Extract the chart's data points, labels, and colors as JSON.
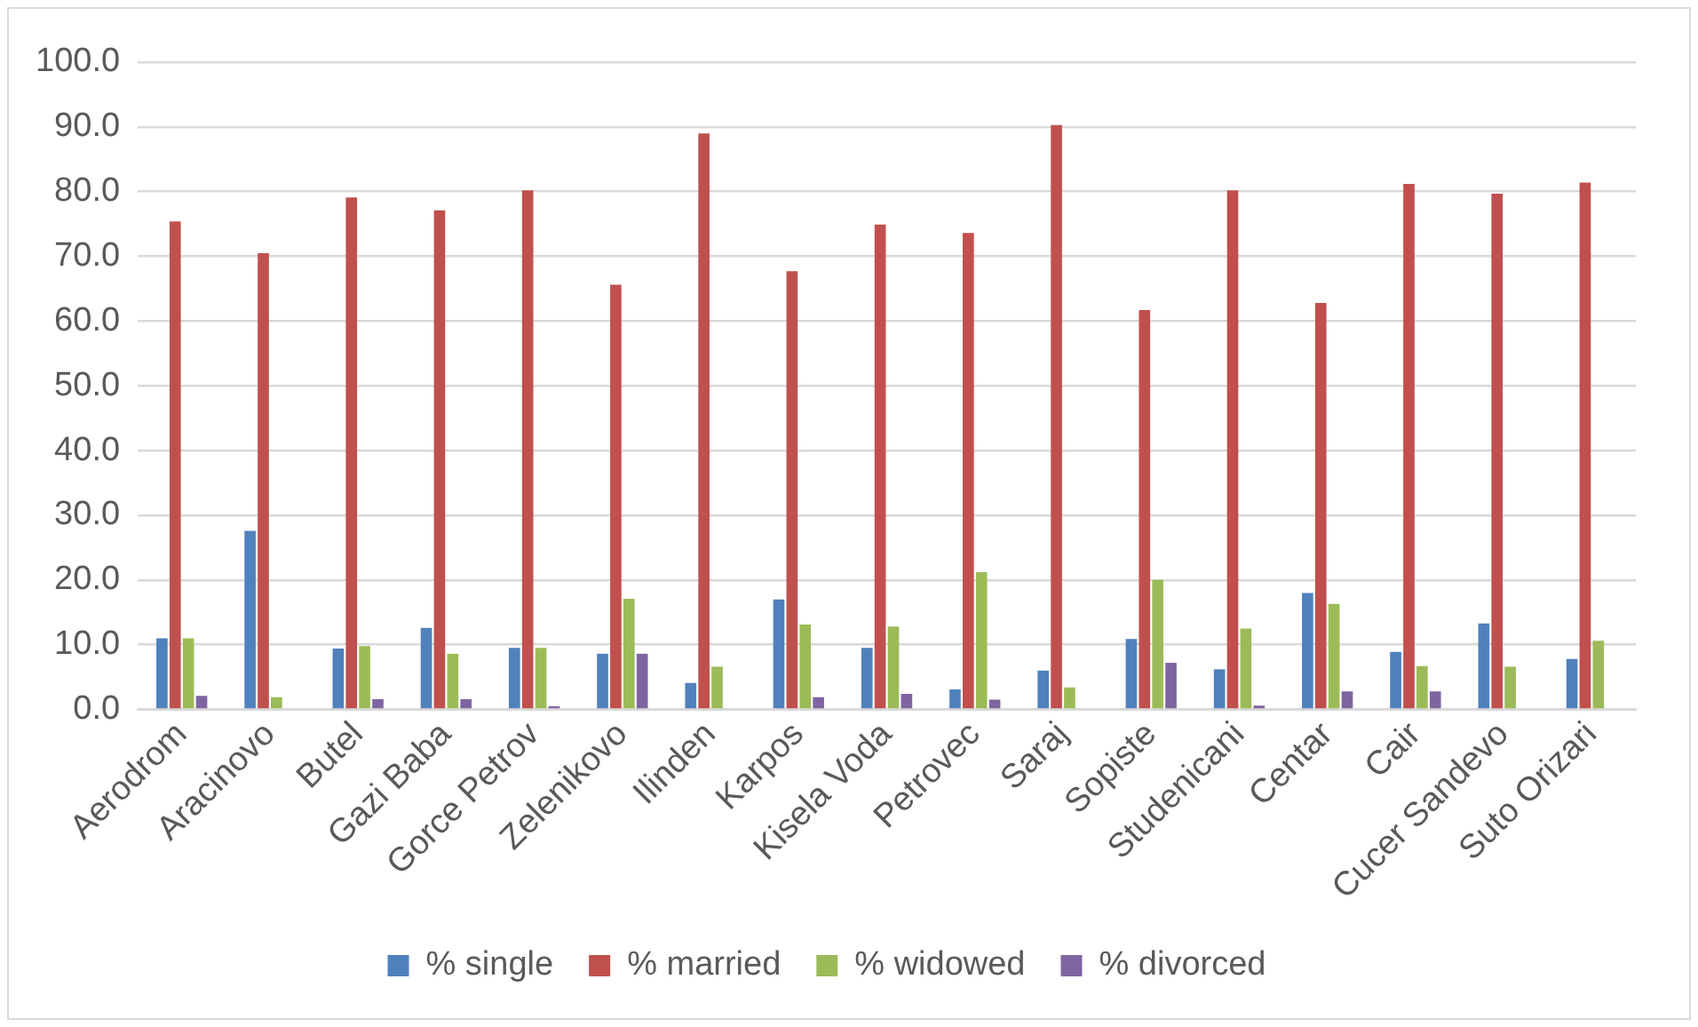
{
  "chart_data": {
    "type": "bar",
    "categories": [
      "Aerodrom",
      "Aracinovo",
      "Butel",
      "Gazi Baba",
      "Gorce Petrov",
      "Zelenikovo",
      "Ilinden",
      "Karpos",
      "Kisela Voda",
      "Petrovec",
      "Saraj",
      "Sopiste",
      "Studenicani",
      "Centar",
      "Cair",
      "Cucer Sandevo",
      "Suto Orizari"
    ],
    "series": [
      {
        "name": "% single",
        "color": "#4f81bd",
        "values": [
          11.0,
          27.6,
          9.4,
          12.6,
          9.5,
          8.6,
          4.1,
          17.0,
          9.5,
          3.1,
          6.0,
          10.9,
          6.2,
          18.0,
          8.9,
          13.3,
          7.8
        ]
      },
      {
        "name": "% married",
        "color": "#c0504d",
        "values": [
          75.4,
          70.5,
          79.1,
          77.1,
          80.2,
          65.6,
          89.0,
          67.7,
          74.9,
          73.6,
          90.3,
          61.7,
          80.2,
          62.8,
          81.2,
          79.7,
          81.4
        ]
      },
      {
        "name": "% widowed",
        "color": "#9bbb59",
        "values": [
          11.0,
          1.9,
          9.8,
          8.6,
          9.5,
          17.1,
          6.6,
          13.1,
          12.8,
          21.2,
          3.4,
          20.0,
          12.5,
          16.3,
          6.7,
          6.6,
          10.6
        ]
      },
      {
        "name": "% divorced",
        "color": "#8064a2",
        "values": [
          2.1,
          0,
          1.6,
          1.6,
          0.5,
          8.6,
          0,
          1.9,
          2.4,
          1.5,
          0,
          7.2,
          0.6,
          2.8,
          2.8,
          0,
          0
        ]
      }
    ],
    "ylim": [
      0,
      100
    ],
    "yticks": [
      {
        "value": 0,
        "label": "0.0"
      },
      {
        "value": 10,
        "label": "10.0"
      },
      {
        "value": 20,
        "label": "20.0"
      },
      {
        "value": 30,
        "label": "30.0"
      },
      {
        "value": 40,
        "label": "40.0"
      },
      {
        "value": 50,
        "label": "50.0"
      },
      {
        "value": 60,
        "label": "60.0"
      },
      {
        "value": 70,
        "label": "70.0"
      },
      {
        "value": 80,
        "label": "80.0"
      },
      {
        "value": 90,
        "label": "90.0"
      },
      {
        "value": 100,
        "label": "100.0"
      }
    ],
    "grid": "y",
    "legend": "bottom"
  }
}
